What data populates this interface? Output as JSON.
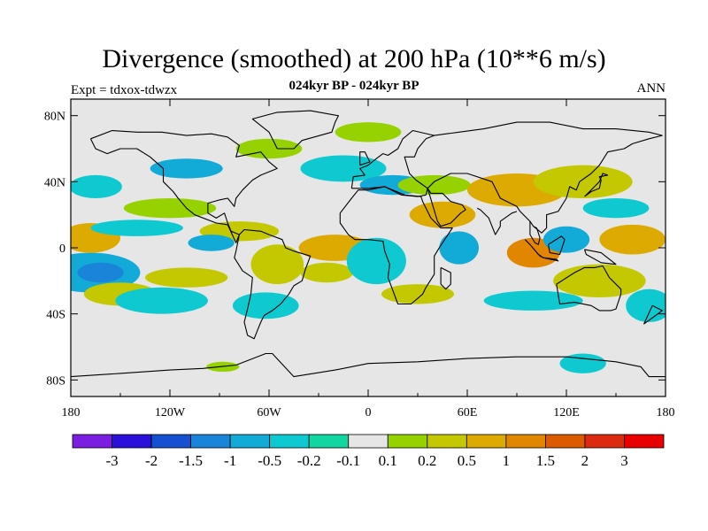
{
  "header": {
    "title": "Divergence (smoothed) at 200 hPa (10**6 m/s)",
    "subtitle": "024kyr BP - 024kyr BP",
    "left_label": "Expt = tdxox-tdwzx",
    "right_label": "ANN"
  },
  "chart_data": {
    "type": "heatmap",
    "title": "Divergence (smoothed) at 200 hPa (10**6 m/s)",
    "projection": "cylindrical equidistant world map",
    "xlim": [
      -180,
      180
    ],
    "ylim": [
      -90,
      90
    ],
    "x_ticks": [
      {
        "value": -180,
        "label": "180"
      },
      {
        "value": -120,
        "label": "120W"
      },
      {
        "value": -60,
        "label": "60W"
      },
      {
        "value": 0,
        "label": "0"
      },
      {
        "value": 60,
        "label": "60E"
      },
      {
        "value": 120,
        "label": "120E"
      },
      {
        "value": 180,
        "label": "180"
      }
    ],
    "y_ticks": [
      {
        "value": 80,
        "label": "80N"
      },
      {
        "value": 40,
        "label": "40N"
      },
      {
        "value": 0,
        "label": "0"
      },
      {
        "value": -40,
        "label": "40S"
      },
      {
        "value": -80,
        "label": "80S"
      }
    ],
    "background_color": "#e6e6e6",
    "colorbar": {
      "labels": [
        "-3",
        "-2",
        "-1.5",
        "-1",
        "-0.5",
        "-0.2",
        "-0.1",
        "0.1",
        "0.2",
        "0.5",
        "1",
        "1.5",
        "2",
        "3"
      ],
      "colors": [
        "#7a1fe0",
        "#2a10d8",
        "#1450d0",
        "#1a84d8",
        "#12aad6",
        "#0ecad0",
        "#12d6a0",
        "#e6e6e6",
        "#96d200",
        "#c4c800",
        "#dcaa00",
        "#e08600",
        "#dc5a00",
        "#dc2a10",
        "#e80000"
      ]
    },
    "field_patches": [
      {
        "lon": -168,
        "lat": -15,
        "rx": 30,
        "ry": 12,
        "color": "#12aad6"
      },
      {
        "lon": -162,
        "lat": -15,
        "rx": 14,
        "ry": 6,
        "color": "#1a84d8"
      },
      {
        "lon": -150,
        "lat": -28,
        "rx": 22,
        "ry": 7,
        "color": "#c4c800"
      },
      {
        "lon": -125,
        "lat": -32,
        "rx": 28,
        "ry": 8,
        "color": "#0ecad0"
      },
      {
        "lon": -110,
        "lat": -18,
        "rx": 25,
        "ry": 6,
        "color": "#c4c800"
      },
      {
        "lon": -168,
        "lat": 6,
        "rx": 18,
        "ry": 9,
        "color": "#dcaa00"
      },
      {
        "lon": -140,
        "lat": 12,
        "rx": 28,
        "ry": 5,
        "color": "#0ecad0"
      },
      {
        "lon": -120,
        "lat": 24,
        "rx": 28,
        "ry": 6,
        "color": "#96d200"
      },
      {
        "lon": -165,
        "lat": 37,
        "rx": 16,
        "ry": 7,
        "color": "#0ecad0"
      },
      {
        "lon": -110,
        "lat": 48,
        "rx": 22,
        "ry": 6,
        "color": "#12aad6"
      },
      {
        "lon": -78,
        "lat": 10,
        "rx": 24,
        "ry": 6,
        "color": "#c4c800"
      },
      {
        "lon": -95,
        "lat": 3,
        "rx": 14,
        "ry": 5,
        "color": "#12aad6"
      },
      {
        "lon": -55,
        "lat": -10,
        "rx": 16,
        "ry": 12,
        "color": "#c4c800"
      },
      {
        "lon": -62,
        "lat": -35,
        "rx": 20,
        "ry": 8,
        "color": "#0ecad0"
      },
      {
        "lon": -20,
        "lat": 0,
        "rx": 22,
        "ry": 8,
        "color": "#dcaa00"
      },
      {
        "lon": -25,
        "lat": -15,
        "rx": 16,
        "ry": 6,
        "color": "#c4c800"
      },
      {
        "lon": 5,
        "lat": -8,
        "rx": 18,
        "ry": 14,
        "color": "#0ecad0"
      },
      {
        "lon": 30,
        "lat": -28,
        "rx": 22,
        "ry": 6,
        "color": "#c4c800"
      },
      {
        "lon": 45,
        "lat": 20,
        "rx": 20,
        "ry": 8,
        "color": "#dcaa00"
      },
      {
        "lon": 55,
        "lat": 0,
        "rx": 12,
        "ry": 10,
        "color": "#12aad6"
      },
      {
        "lon": -15,
        "lat": 48,
        "rx": 26,
        "ry": 8,
        "color": "#0ecad0"
      },
      {
        "lon": 15,
        "lat": 38,
        "rx": 20,
        "ry": 6,
        "color": "#12aad6"
      },
      {
        "lon": 40,
        "lat": 38,
        "rx": 22,
        "ry": 6,
        "color": "#96d200"
      },
      {
        "lon": -60,
        "lat": 60,
        "rx": 20,
        "ry": 6,
        "color": "#96d200"
      },
      {
        "lon": 0,
        "lat": 70,
        "rx": 20,
        "ry": 6,
        "color": "#96d200"
      },
      {
        "lon": 90,
        "lat": 35,
        "rx": 30,
        "ry": 10,
        "color": "#dcaa00"
      },
      {
        "lon": 130,
        "lat": 40,
        "rx": 30,
        "ry": 10,
        "color": "#c4c800"
      },
      {
        "lon": 100,
        "lat": -3,
        "rx": 16,
        "ry": 9,
        "color": "#e08600"
      },
      {
        "lon": 120,
        "lat": 5,
        "rx": 14,
        "ry": 8,
        "color": "#12aad6"
      },
      {
        "lon": 160,
        "lat": 5,
        "rx": 20,
        "ry": 9,
        "color": "#dcaa00"
      },
      {
        "lon": 150,
        "lat": 24,
        "rx": 20,
        "ry": 6,
        "color": "#0ecad0"
      },
      {
        "lon": 140,
        "lat": -20,
        "rx": 28,
        "ry": 10,
        "color": "#c4c800"
      },
      {
        "lon": 100,
        "lat": -32,
        "rx": 30,
        "ry": 6,
        "color": "#0ecad0"
      },
      {
        "lon": 170,
        "lat": -35,
        "rx": 14,
        "ry": 10,
        "color": "#0ecad0"
      },
      {
        "lon": 130,
        "lat": -70,
        "rx": 14,
        "ry": 6,
        "color": "#0ecad0"
      },
      {
        "lon": -88,
        "lat": -72,
        "rx": 10,
        "ry": 3,
        "color": "#96d200"
      }
    ],
    "coastlines": [
      [
        [
          -168,
          66
        ],
        [
          -155,
          71
        ],
        [
          -140,
          70
        ],
        [
          -125,
          70
        ],
        [
          -110,
          68
        ],
        [
          -95,
          69
        ],
        [
          -85,
          67
        ],
        [
          -78,
          62
        ],
        [
          -80,
          55
        ],
        [
          -65,
          58
        ],
        [
          -60,
          52
        ],
        [
          -55,
          48
        ],
        [
          -65,
          44
        ],
        [
          -70,
          41
        ],
        [
          -76,
          35
        ],
        [
          -80,
          30
        ],
        [
          -81,
          25
        ],
        [
          -85,
          30
        ],
        [
          -90,
          29
        ],
        [
          -97,
          27
        ],
        [
          -97,
          21
        ],
        [
          -92,
          18
        ],
        [
          -87,
          21
        ],
        [
          -85,
          15
        ],
        [
          -83,
          10
        ],
        [
          -78,
          8
        ],
        [
          -80,
          3
        ],
        [
          -85,
          14
        ],
        [
          -92,
          15
        ],
        [
          -105,
          20
        ],
        [
          -110,
          24
        ],
        [
          -115,
          30
        ],
        [
          -118,
          34
        ],
        [
          -124,
          40
        ],
        [
          -124,
          48
        ],
        [
          -132,
          55
        ],
        [
          -140,
          60
        ],
        [
          -150,
          60
        ],
        [
          -158,
          57
        ],
        [
          -165,
          60
        ],
        [
          -168,
          66
        ]
      ],
      [
        [
          -78,
          8
        ],
        [
          -75,
          11
        ],
        [
          -65,
          10
        ],
        [
          -60,
          8
        ],
        [
          -52,
          5
        ],
        [
          -50,
          0
        ],
        [
          -45,
          -2
        ],
        [
          -35,
          -5
        ],
        [
          -38,
          -13
        ],
        [
          -40,
          -20
        ],
        [
          -45,
          -23
        ],
        [
          -48,
          -28
        ],
        [
          -53,
          -34
        ],
        [
          -58,
          -38
        ],
        [
          -63,
          -41
        ],
        [
          -65,
          -45
        ],
        [
          -67,
          -50
        ],
        [
          -69,
          -55
        ],
        [
          -73,
          -53
        ],
        [
          -75,
          -45
        ],
        [
          -73,
          -37
        ],
        [
          -71,
          -28
        ],
        [
          -70,
          -18
        ],
        [
          -76,
          -14
        ],
        [
          -81,
          -6
        ],
        [
          -80,
          -2
        ],
        [
          -78,
          8
        ]
      ],
      [
        [
          -10,
          36
        ],
        [
          -9,
          43
        ],
        [
          -2,
          44
        ],
        [
          -5,
          48
        ],
        [
          0,
          50
        ],
        [
          5,
          54
        ],
        [
          9,
          57
        ],
        [
          12,
          56
        ],
        [
          18,
          60
        ],
        [
          21,
          66
        ],
        [
          27,
          71
        ],
        [
          40,
          68
        ],
        [
          35,
          66
        ],
        [
          30,
          60
        ],
        [
          28,
          55
        ],
        [
          22,
          55
        ],
        [
          25,
          45
        ],
        [
          29,
          41
        ],
        [
          36,
          36
        ],
        [
          35,
          32
        ],
        [
          30,
          31
        ],
        [
          20,
          32
        ],
        [
          10,
          37
        ],
        [
          0,
          36
        ],
        [
          -10,
          36
        ]
      ],
      [
        [
          -17,
          21
        ],
        [
          -17,
          15
        ],
        [
          -12,
          8
        ],
        [
          -8,
          5
        ],
        [
          0,
          5
        ],
        [
          9,
          4
        ],
        [
          10,
          -2
        ],
        [
          13,
          -10
        ],
        [
          12,
          -18
        ],
        [
          18,
          -34
        ],
        [
          26,
          -34
        ],
        [
          33,
          -28
        ],
        [
          35,
          -24
        ],
        [
          40,
          -16
        ],
        [
          40,
          -5
        ],
        [
          43,
          0
        ],
        [
          51,
          12
        ],
        [
          44,
          12
        ],
        [
          38,
          18
        ],
        [
          33,
          28
        ],
        [
          32,
          31
        ],
        [
          22,
          32
        ],
        [
          10,
          37
        ],
        [
          0,
          35
        ],
        [
          -6,
          35
        ],
        [
          -10,
          30
        ],
        [
          -17,
          21
        ]
      ],
      [
        [
          36,
          36
        ],
        [
          40,
          40
        ],
        [
          50,
          45
        ],
        [
          60,
          45
        ],
        [
          75,
          40
        ],
        [
          80,
          30
        ],
        [
          90,
          25
        ],
        [
          92,
          22
        ],
        [
          98,
          16
        ],
        [
          100,
          13
        ],
        [
          105,
          9
        ],
        [
          108,
          12
        ],
        [
          108,
          20
        ],
        [
          115,
          22
        ],
        [
          120,
          30
        ],
        [
          122,
          37
        ],
        [
          126,
          35
        ],
        [
          128,
          40
        ],
        [
          135,
          45
        ],
        [
          140,
          50
        ],
        [
          145,
          58
        ],
        [
          155,
          60
        ],
        [
          160,
          63
        ],
        [
          170,
          66
        ],
        [
          178,
          68
        ],
        [
          170,
          70
        ],
        [
          150,
          72
        ],
        [
          130,
          72
        ],
        [
          110,
          76
        ],
        [
          90,
          76
        ],
        [
          70,
          72
        ],
        [
          55,
          70
        ],
        [
          40,
          68
        ]
      ],
      [
        [
          36,
          36
        ],
        [
          42,
          16
        ],
        [
          44,
          13
        ],
        [
          50,
          15
        ],
        [
          56,
          21
        ],
        [
          59,
          23
        ],
        [
          57,
          26
        ],
        [
          50,
          28
        ],
        [
          48,
          30
        ],
        [
          45,
          33
        ],
        [
          38,
          33
        ],
        [
          36,
          36
        ]
      ],
      [
        [
          66,
          24
        ],
        [
          68,
          23
        ],
        [
          73,
          18
        ],
        [
          77,
          8
        ],
        [
          80,
          13
        ],
        [
          80,
          16
        ],
        [
          87,
          21
        ],
        [
          90,
          22
        ]
      ],
      [
        [
          98,
          16
        ],
        [
          98,
          8
        ],
        [
          101,
          3
        ],
        [
          103,
          2
        ],
        [
          104,
          6
        ],
        [
          102,
          12
        ],
        [
          100,
          13
        ]
      ],
      [
        [
          114,
          -22
        ],
        [
          116,
          -34
        ],
        [
          125,
          -33
        ],
        [
          135,
          -35
        ],
        [
          140,
          -38
        ],
        [
          147,
          -38
        ],
        [
          150,
          -37
        ],
        [
          153,
          -28
        ],
        [
          153,
          -25
        ],
        [
          146,
          -18
        ],
        [
          142,
          -11
        ],
        [
          137,
          -12
        ],
        [
          131,
          -12
        ],
        [
          125,
          -15
        ],
        [
          114,
          -22
        ]
      ],
      [
        [
          -180,
          -78
        ],
        [
          -150,
          -76
        ],
        [
          -120,
          -74
        ],
        [
          -100,
          -73
        ],
        [
          -80,
          -71
        ],
        [
          -62,
          -64
        ],
        [
          -58,
          -64
        ],
        [
          -45,
          -78
        ],
        [
          -20,
          -74
        ],
        [
          0,
          -70
        ],
        [
          30,
          -69
        ],
        [
          60,
          -67
        ],
        [
          90,
          -66
        ],
        [
          120,
          -66
        ],
        [
          150,
          -69
        ],
        [
          165,
          -72
        ],
        [
          170,
          -78
        ],
        [
          180,
          -78
        ]
      ],
      [
        [
          -55,
          60
        ],
        [
          -45,
          60
        ],
        [
          -40,
          65
        ],
        [
          -22,
          70
        ],
        [
          -20,
          76
        ],
        [
          -18,
          80
        ],
        [
          -35,
          83
        ],
        [
          -55,
          82
        ],
        [
          -70,
          78
        ],
        [
          -60,
          70
        ],
        [
          -55,
          60
        ]
      ],
      [
        [
          44,
          -12
        ],
        [
          50,
          -15
        ],
        [
          50,
          -22
        ],
        [
          47,
          -25
        ],
        [
          44,
          -22
        ],
        [
          44,
          -12
        ]
      ],
      [
        [
          131,
          31
        ],
        [
          135,
          34
        ],
        [
          140,
          36
        ],
        [
          141,
          41
        ],
        [
          140,
          43
        ],
        [
          145,
          44
        ],
        [
          142,
          45
        ],
        [
          140,
          40
        ],
        [
          133,
          33
        ],
        [
          131,
          31
        ]
      ],
      [
        [
          95,
          5
        ],
        [
          98,
          2
        ],
        [
          104,
          -5
        ],
        [
          106,
          -6
        ],
        [
          103,
          -4
        ],
        [
          98,
          2
        ]
      ],
      [
        [
          106,
          -6
        ],
        [
          115,
          -8
        ],
        [
          114,
          -7
        ],
        [
          106,
          -6
        ]
      ],
      [
        [
          109,
          2
        ],
        [
          117,
          7
        ],
        [
          119,
          5
        ],
        [
          116,
          -4
        ],
        [
          110,
          -3
        ],
        [
          109,
          2
        ]
      ],
      [
        [
          131,
          -1
        ],
        [
          141,
          -3
        ],
        [
          150,
          -10
        ],
        [
          141,
          -9
        ],
        [
          132,
          -4
        ],
        [
          131,
          -1
        ]
      ],
      [
        [
          -5,
          50
        ],
        [
          -5,
          58
        ],
        [
          -2,
          58
        ],
        [
          1,
          52
        ],
        [
          -5,
          50
        ]
      ],
      [
        [
          172,
          -35
        ],
        [
          178,
          -38
        ],
        [
          174,
          -41
        ],
        [
          167,
          -46
        ],
        [
          172,
          -35
        ]
      ]
    ]
  }
}
